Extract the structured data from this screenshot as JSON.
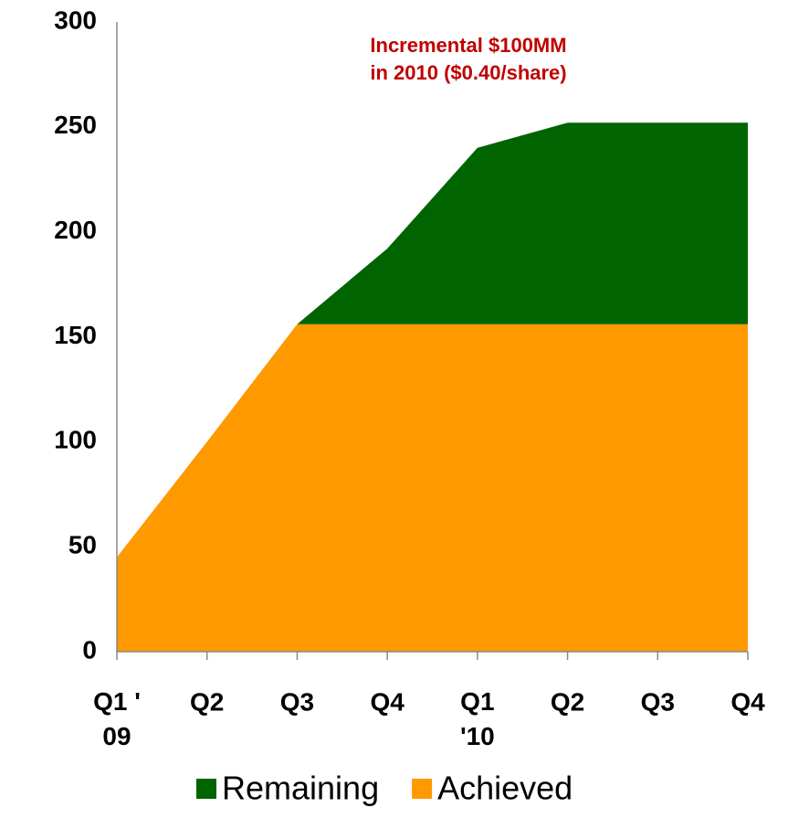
{
  "chart_data": {
    "type": "stacked_area",
    "annotation": [
      "Incremental $100MM",
      "in 2010 ($0.40/share)"
    ],
    "annotation_color": "#c00000",
    "categories": [
      "Q1 '\n09",
      "Q2",
      "Q3",
      "Q4",
      "Q1\n'10",
      "Q2",
      "Q3",
      "Q4"
    ],
    "series": [
      {
        "name": "Achieved",
        "color": "#ff9900",
        "values": [
          45,
          100,
          156,
          156,
          156,
          156,
          156,
          156
        ]
      },
      {
        "name": "Remaining",
        "color": "#006400",
        "values": [
          0,
          0,
          0,
          36,
          84,
          96,
          96,
          96
        ]
      }
    ],
    "legend_order": [
      1,
      0
    ],
    "ylim": [
      0,
      300
    ],
    "yticks": [
      0,
      50,
      100,
      150,
      200,
      250,
      300
    ],
    "grid": false
  }
}
